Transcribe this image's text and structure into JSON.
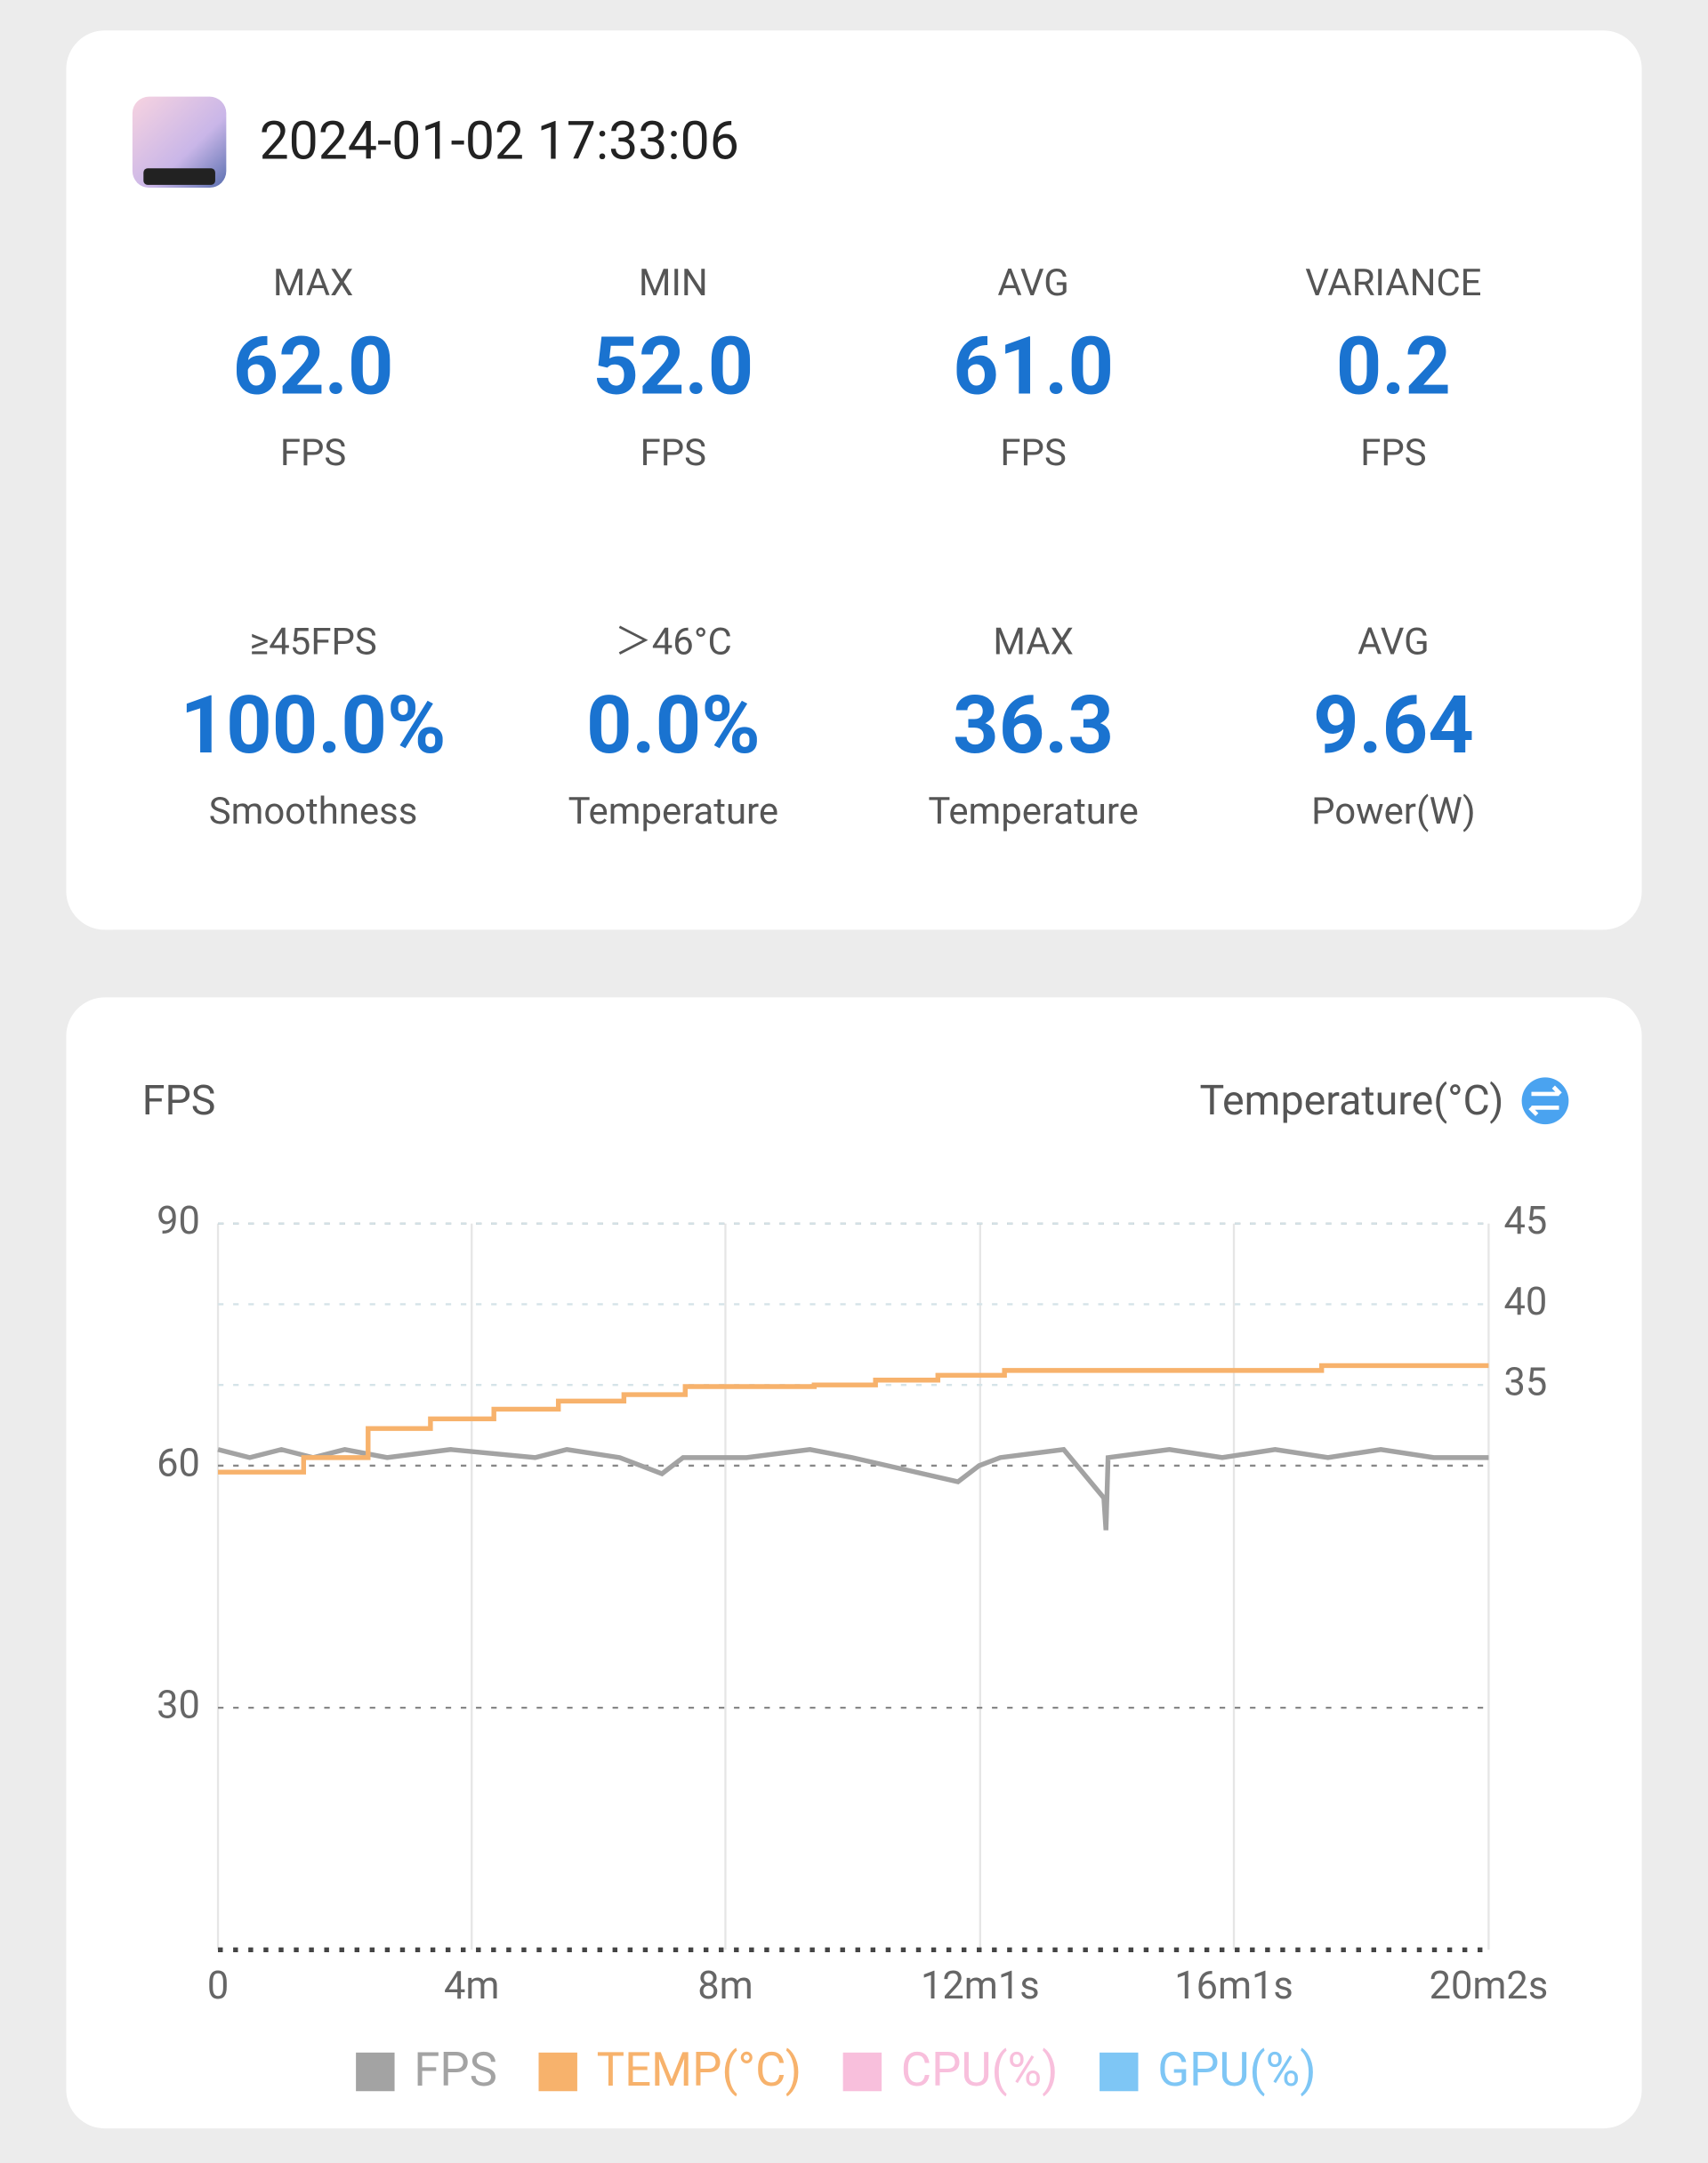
{
  "header": {
    "timestamp": "2024-01-02 17:33:06"
  },
  "stats": [
    {
      "label": "MAX",
      "value": "62.0",
      "unit": "FPS"
    },
    {
      "label": "MIN",
      "value": "52.0",
      "unit": "FPS"
    },
    {
      "label": "AVG",
      "value": "61.0",
      "unit": "FPS"
    },
    {
      "label": "VARIANCE",
      "value": "0.2",
      "unit": "FPS"
    },
    {
      "label": "≥45FPS",
      "value": "100.0%",
      "unit": "Smoothness"
    },
    {
      "label": "＞46°C",
      "value": "0.0%",
      "unit": "Temperature"
    },
    {
      "label": "MAX",
      "value": "36.3",
      "unit": "Temperature"
    },
    {
      "label": "AVG",
      "value": "9.64",
      "unit": "Power(W)"
    }
  ],
  "chart_data": {
    "type": "line",
    "y_label": "FPS",
    "y2_label": "Temperature(°C)",
    "xlim": [
      0,
      1202
    ],
    "xticks": [
      {
        "value": 0,
        "label": "0"
      },
      {
        "value": 240,
        "label": "4m"
      },
      {
        "value": 480,
        "label": "8m"
      },
      {
        "value": 721,
        "label": "12m1s"
      },
      {
        "value": 961,
        "label": "16m1s"
      },
      {
        "value": 1202,
        "label": "20m2s"
      }
    ],
    "ylim": [
      0,
      90
    ],
    "yticks": [
      30,
      60,
      90
    ],
    "y2lim": [
      0,
      45
    ],
    "y2ticks": [
      35,
      40,
      45
    ],
    "grid": true,
    "series": [
      {
        "name": "FPS",
        "color": "#a3a3a3",
        "x": [
          0,
          30,
          60,
          90,
          120,
          160,
          220,
          300,
          330,
          380,
          420,
          440,
          500,
          560,
          600,
          700,
          720,
          740,
          800,
          838,
          840,
          842,
          900,
          950,
          1000,
          1050,
          1100,
          1150,
          1202
        ],
        "values": [
          62,
          61,
          62,
          61,
          62,
          61,
          62,
          61,
          62,
          61,
          59,
          61,
          61,
          62,
          61,
          58,
          60,
          61,
          62,
          56,
          52,
          61,
          62,
          61,
          62,
          61,
          62,
          61,
          61
        ]
      },
      {
        "name": "TEMP(°C)",
        "color": "#f7b26c",
        "axis": "y2",
        "x": [
          0,
          81,
          81,
          142,
          142,
          201,
          201,
          261,
          261,
          322,
          322,
          384,
          384,
          442,
          442,
          564,
          564,
          622,
          622,
          681,
          681,
          744,
          744,
          1044,
          1044,
          1202
        ],
        "values": [
          29.6,
          29.6,
          30.5,
          30.5,
          32.3,
          32.3,
          32.9,
          32.9,
          33.5,
          33.5,
          34.0,
          34.0,
          34.4,
          34.4,
          34.9,
          34.9,
          35.0,
          35.0,
          35.3,
          35.3,
          35.6,
          35.6,
          35.9,
          35.9,
          36.2,
          36.2
        ]
      },
      {
        "name": "CPU(%)",
        "color": "#f8bfdc",
        "x": [],
        "values": []
      },
      {
        "name": "GPU(%)",
        "color": "#7ec6f5",
        "x": [],
        "values": []
      }
    ]
  }
}
